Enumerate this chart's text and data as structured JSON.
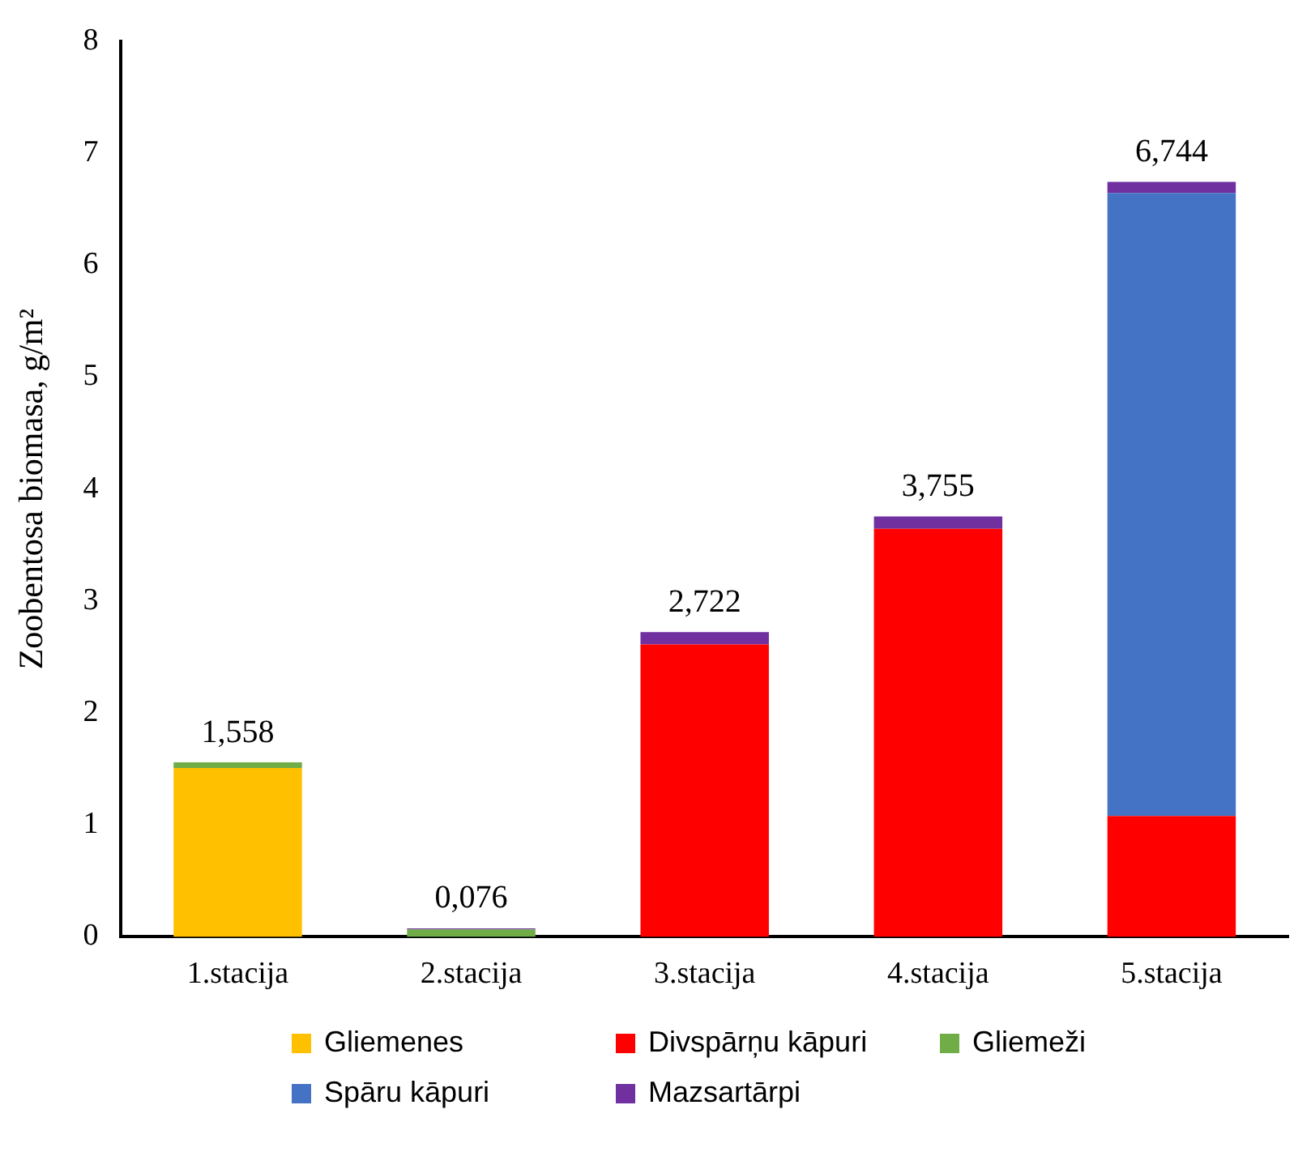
{
  "chart_data": {
    "type": "bar",
    "stacked": true,
    "ylabel": "Zoobentosa biomasa, g/m²",
    "categories": [
      "1.stacija",
      "2.stacija",
      "3.stacija",
      "4.stacija",
      "5.stacija"
    ],
    "series": [
      {
        "name": "Gliemenes",
        "color": "#ffc000",
        "values": [
          1.508,
          0,
          0,
          0,
          0
        ]
      },
      {
        "name": "Divspārņu kāpuri",
        "color": "#ff0000",
        "values": [
          0,
          0,
          2.612,
          3.645,
          1.08
        ]
      },
      {
        "name": "Gliemeži",
        "color": "#70ad47",
        "values": [
          0.05,
          0.066,
          0,
          0,
          0
        ]
      },
      {
        "name": "Spāru kāpuri",
        "color": "#4472c4",
        "values": [
          0,
          0,
          0,
          0,
          5.564
        ]
      },
      {
        "name": "Mazsartārpi",
        "color": "#7030a0",
        "values": [
          0,
          0.01,
          0.11,
          0.11,
          0.1
        ]
      }
    ],
    "totals": [
      "1,558",
      "0,076",
      "2,722",
      "3,755",
      "6,744"
    ],
    "ylim": [
      0,
      8
    ],
    "yticks": [
      0,
      1,
      2,
      3,
      4,
      5,
      6,
      7,
      8
    ],
    "grid": false,
    "legend": "bottom"
  }
}
